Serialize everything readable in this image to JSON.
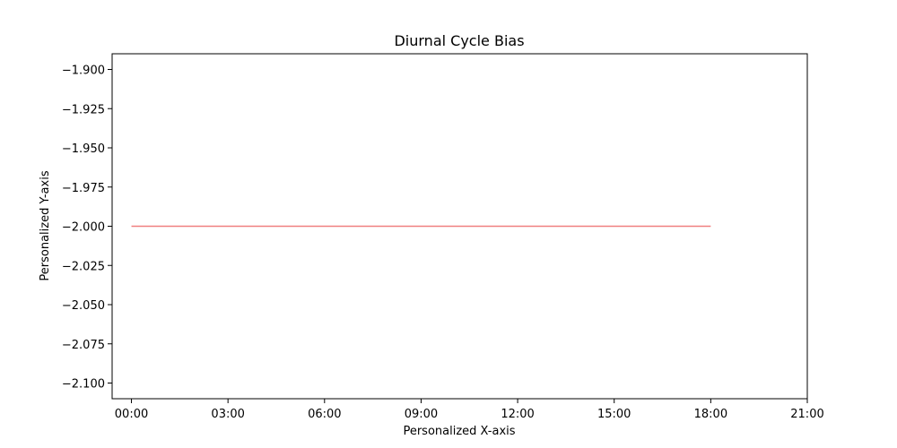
{
  "chart_data": {
    "type": "line",
    "title": "Diurnal Cycle Bias",
    "xlabel": "Personalized X-axis",
    "ylabel": "Personalized Y-axis",
    "x_ticks": [
      "00:00",
      "03:00",
      "06:00",
      "09:00",
      "12:00",
      "15:00",
      "18:00",
      "21:00"
    ],
    "y_ticks": [
      "−1.900",
      "−1.925",
      "−1.950",
      "−1.975",
      "−2.000",
      "−2.025",
      "−2.050",
      "−2.075",
      "−2.100"
    ],
    "y_tick_values": [
      -1.9,
      -1.925,
      -1.95,
      -1.975,
      -2.0,
      -2.025,
      -2.05,
      -2.075,
      -2.1
    ],
    "xlim": [
      "-00:36",
      "21:00"
    ],
    "ylim": [
      -2.11,
      -1.89
    ],
    "grid": false,
    "series": [
      {
        "color": "#f08080",
        "x": [
          "00:00",
          "03:00",
          "06:00",
          "09:00",
          "12:00",
          "15:00",
          "18:00"
        ],
        "y": [
          -2.0,
          -2.0,
          -2.0,
          -2.0,
          -2.0,
          -2.0,
          -2.0
        ]
      }
    ]
  }
}
